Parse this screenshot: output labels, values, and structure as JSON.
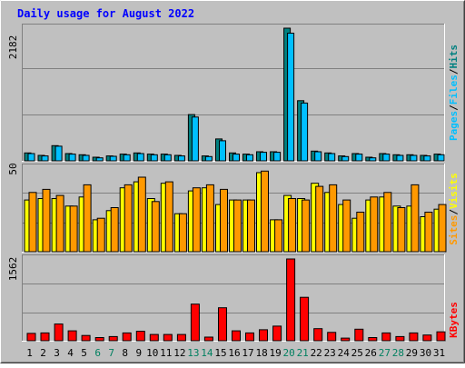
{
  "title": "Daily usage for August 2022",
  "colors": {
    "background": "#c0c0c0",
    "plot": "#c0c0c0",
    "title": "#0000ff",
    "grid": "#808080",
    "pages": "#008080",
    "files": "#00bfff",
    "hits": "#00a050",
    "sites": "#ff9900",
    "visits": "#ffff00",
    "kbytes": "#ff0000",
    "weekend": "#008060",
    "weekday": "#000000"
  },
  "chart_data": [
    {
      "type": "bar",
      "panel": "hits-files-pages",
      "categories": [
        "1",
        "2",
        "3",
        "4",
        "5",
        "6",
        "7",
        "8",
        "9",
        "10",
        "11",
        "12",
        "13",
        "14",
        "15",
        "16",
        "17",
        "18",
        "19",
        "20",
        "21",
        "22",
        "23",
        "24",
        "25",
        "26",
        "27",
        "28",
        "29",
        "30",
        "31"
      ],
      "ymax_label": "2182",
      "ylim": [
        0,
        2182
      ],
      "legend": [
        "Pages",
        "/",
        "Files",
        "/",
        "Hits"
      ],
      "series": [
        {
          "name": "Hits",
          "values": [
            130,
            90,
            250,
            120,
            100,
            60,
            80,
            110,
            130,
            110,
            110,
            90,
            760,
            80,
            360,
            130,
            110,
            150,
            150,
            2182,
            990,
            160,
            130,
            80,
            120,
            60,
            120,
            100,
            100,
            90,
            110
          ]
        },
        {
          "name": "Files",
          "values": [
            120,
            80,
            240,
            110,
            90,
            50,
            75,
            100,
            120,
            100,
            100,
            80,
            720,
            70,
            330,
            110,
            100,
            140,
            140,
            2100,
            950,
            150,
            120,
            70,
            110,
            50,
            110,
            90,
            90,
            80,
            100
          ]
        }
      ]
    },
    {
      "type": "bar",
      "panel": "visits-sites",
      "categories": [
        "1",
        "2",
        "3",
        "4",
        "5",
        "6",
        "7",
        "8",
        "9",
        "10",
        "11",
        "12",
        "13",
        "14",
        "15",
        "16",
        "17",
        "18",
        "19",
        "20",
        "21",
        "22",
        "23",
        "24",
        "25",
        "26",
        "27",
        "28",
        "29",
        "30",
        "31"
      ],
      "ymax_label": "50",
      "ylim": [
        0,
        55
      ],
      "legend": [
        "Sites",
        "/",
        "Visits"
      ],
      "series": [
        {
          "name": "Visits",
          "values": [
            34,
            35,
            35,
            30,
            36,
            21,
            27,
            42,
            46,
            35,
            45,
            25,
            40,
            42,
            31,
            34,
            34,
            52,
            21,
            37,
            35,
            45,
            39,
            31,
            22,
            34,
            36,
            30,
            30,
            23,
            28
          ]
        },
        {
          "name": "Sites",
          "values": [
            39,
            41,
            37,
            30,
            44,
            22,
            29,
            44,
            49,
            33,
            46,
            25,
            42,
            44,
            41,
            34,
            34,
            53,
            21,
            35,
            34,
            43,
            44,
            34,
            26,
            36,
            39,
            29,
            44,
            26,
            31
          ]
        }
      ]
    },
    {
      "type": "bar",
      "panel": "kbytes",
      "categories": [
        "1",
        "2",
        "3",
        "4",
        "5",
        "6",
        "7",
        "8",
        "9",
        "10",
        "11",
        "12",
        "13",
        "14",
        "15",
        "16",
        "17",
        "18",
        "19",
        "20",
        "21",
        "22",
        "23",
        "24",
        "25",
        "26",
        "27",
        "28",
        "29",
        "30",
        "31"
      ],
      "ymax_label": "1562",
      "ylim": [
        0,
        1562
      ],
      "legend": [
        "KBytes"
      ],
      "series": [
        {
          "name": "KBytes",
          "values": [
            140,
            150,
            320,
            190,
            100,
            60,
            80,
            150,
            180,
            120,
            120,
            120,
            700,
            70,
            630,
            190,
            150,
            210,
            280,
            1562,
            830,
            230,
            160,
            50,
            220,
            60,
            150,
            80,
            150,
            110,
            170
          ]
        }
      ]
    }
  ],
  "days": [
    {
      "label": "1",
      "weekend": false
    },
    {
      "label": "2",
      "weekend": false
    },
    {
      "label": "3",
      "weekend": false
    },
    {
      "label": "4",
      "weekend": false
    },
    {
      "label": "5",
      "weekend": false
    },
    {
      "label": "6",
      "weekend": true
    },
    {
      "label": "7",
      "weekend": true
    },
    {
      "label": "8",
      "weekend": false
    },
    {
      "label": "9",
      "weekend": false
    },
    {
      "label": "10",
      "weekend": false
    },
    {
      "label": "11",
      "weekend": false
    },
    {
      "label": "12",
      "weekend": false
    },
    {
      "label": "13",
      "weekend": true
    },
    {
      "label": "14",
      "weekend": true
    },
    {
      "label": "15",
      "weekend": false
    },
    {
      "label": "16",
      "weekend": false
    },
    {
      "label": "17",
      "weekend": false
    },
    {
      "label": "18",
      "weekend": false
    },
    {
      "label": "19",
      "weekend": false
    },
    {
      "label": "20",
      "weekend": true
    },
    {
      "label": "21",
      "weekend": true
    },
    {
      "label": "22",
      "weekend": false
    },
    {
      "label": "23",
      "weekend": false
    },
    {
      "label": "24",
      "weekend": false
    },
    {
      "label": "25",
      "weekend": false
    },
    {
      "label": "26",
      "weekend": false
    },
    {
      "label": "27",
      "weekend": true
    },
    {
      "label": "28",
      "weekend": true
    },
    {
      "label": "29",
      "weekend": false
    },
    {
      "label": "30",
      "weekend": false
    },
    {
      "label": "31",
      "weekend": false
    }
  ]
}
